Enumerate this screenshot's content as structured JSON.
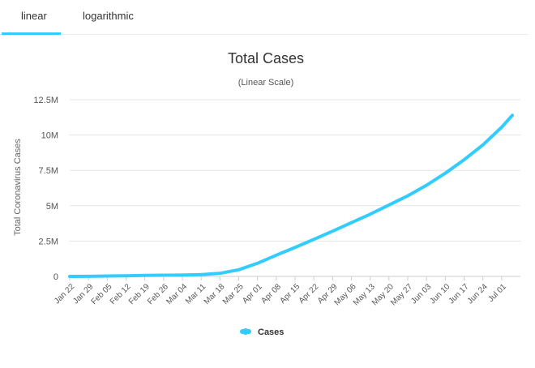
{
  "tabs": [
    {
      "label": "linear",
      "active": true
    },
    {
      "label": "logarithmic",
      "active": false
    }
  ],
  "accent_color": "#33ccff",
  "chart_data": {
    "type": "line",
    "title": "Total Cases",
    "subtitle": "(Linear Scale)",
    "xlabel": "",
    "ylabel": "Total Coronavirus Cases",
    "ylim": [
      0,
      12500000
    ],
    "y_ticks": [
      {
        "value": 0,
        "label": "0"
      },
      {
        "value": 2500000,
        "label": "2.5M"
      },
      {
        "value": 5000000,
        "label": "5M"
      },
      {
        "value": 7500000,
        "label": "7.5M"
      },
      {
        "value": 10000000,
        "label": "10M"
      },
      {
        "value": 12500000,
        "label": "12.5M"
      }
    ],
    "x_ticks": [
      "Jan 22",
      "Jan 29",
      "Feb 05",
      "Feb 12",
      "Feb 19",
      "Feb 26",
      "Mar 04",
      "Mar 11",
      "Mar 18",
      "Mar 25",
      "Apr 01",
      "Apr 08",
      "Apr 15",
      "Apr 22",
      "Apr 29",
      "May 06",
      "May 13",
      "May 20",
      "May 27",
      "Jun 03",
      "Jun 10",
      "Jun 17",
      "Jun 24",
      "Jul 01"
    ],
    "grid": true,
    "legend": "bottom-center",
    "series": [
      {
        "name": "Cases",
        "color": "#33ccff",
        "x": [
          "Jan 22",
          "Jan 29",
          "Feb 05",
          "Feb 12",
          "Feb 19",
          "Feb 26",
          "Mar 04",
          "Mar 11",
          "Mar 18",
          "Mar 25",
          "Apr 01",
          "Apr 08",
          "Apr 15",
          "Apr 22",
          "Apr 29",
          "May 06",
          "May 13",
          "May 20",
          "May 27",
          "Jun 03",
          "Jun 10",
          "Jun 17",
          "Jun 24",
          "Jul 01",
          "Jul 05"
        ],
        "values": [
          580,
          7800,
          28000,
          45000,
          75000,
          83000,
          95000,
          126000,
          220000,
          470000,
          930000,
          1500000,
          2050000,
          2620000,
          3200000,
          3800000,
          4400000,
          5050000,
          5700000,
          6450000,
          7300000,
          8250000,
          9300000,
          10550000,
          11400000
        ]
      }
    ]
  }
}
